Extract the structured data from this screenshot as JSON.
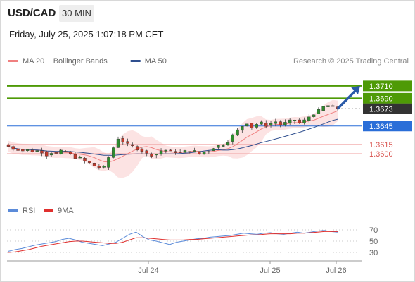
{
  "header": {
    "symbol": "USD/CAD",
    "timeframe": "30 MIN",
    "timestamp": "Friday, July 25, 2025 1:07:18 PM CET"
  },
  "legend": {
    "items": [
      {
        "label": "MA 20 + Bollinger Bands",
        "color": "#f08080"
      },
      {
        "label": "MA 50",
        "color": "#2f4f8f"
      }
    ],
    "credit": "Research © 2025 Trading Central"
  },
  "chart_data": [
    {
      "type": "candlestick",
      "title": "",
      "ylim": [
        1.3535,
        1.3735
      ],
      "grid": false,
      "legend_position": "top-left",
      "x_ticks": [
        "Jul 24",
        "Jul 25",
        "Jul 26"
      ],
      "close_path": [
        1.3612,
        1.3608,
        1.3607,
        1.3605,
        1.3606,
        1.3604,
        1.3605,
        1.3603,
        1.3598,
        1.3602,
        1.36,
        1.3604,
        1.3603,
        1.3599,
        1.3594,
        1.3593,
        1.3588,
        1.3585,
        1.358,
        1.3578,
        1.3578,
        1.3594,
        1.361,
        1.3625,
        1.362,
        1.3615,
        1.3612,
        1.3608,
        1.3605,
        1.36,
        1.3598,
        1.36,
        1.3605,
        1.3606,
        1.3604,
        1.3603,
        1.3602,
        1.3604,
        1.3605,
        1.3604,
        1.36,
        1.3603,
        1.3605,
        1.361,
        1.3613,
        1.3615,
        1.362,
        1.363,
        1.3638,
        1.3645,
        1.365,
        1.3643,
        1.3648,
        1.365,
        1.3646,
        1.3649,
        1.3652,
        1.3647,
        1.365,
        1.3653,
        1.3655,
        1.365,
        1.3654,
        1.366,
        1.3665,
        1.367,
        1.3676,
        1.3678,
        1.3676,
        1.3674
      ],
      "lines": [
        {
          "value": 1.371,
          "label": "1.3710",
          "kind": "resistance",
          "color": "#4e9a06"
        },
        {
          "value": 1.369,
          "label": "1.3690",
          "kind": "resistance",
          "color": "#4e9a06"
        },
        {
          "value": 1.3673,
          "label": "1.3673",
          "kind": "last",
          "color": "#333333"
        },
        {
          "value": 1.3645,
          "label": "1.3645",
          "kind": "pivot",
          "color": "#2a6ed8"
        },
        {
          "value": 1.3615,
          "label": "1.3615",
          "kind": "support",
          "color": "#d9534f"
        },
        {
          "value": 1.36,
          "label": "1.3600",
          "kind": "support",
          "color": "#d9534f"
        }
      ],
      "projection": {
        "from": 1.3673,
        "to": 1.371
      }
    },
    {
      "type": "line",
      "title": "",
      "legend": [
        {
          "label": "RSI",
          "color": "#5b8bd9"
        },
        {
          "label": "9MA",
          "color": "#e0302e"
        }
      ],
      "ylim": [
        20,
        80
      ],
      "y_ticks": [
        70,
        50,
        30
      ],
      "series": [
        {
          "name": "RSI",
          "values": [
            32,
            35,
            37,
            40,
            43,
            45,
            47,
            49,
            53,
            55,
            52,
            48,
            46,
            44,
            42,
            45,
            48,
            55,
            62,
            66,
            58,
            52,
            50,
            47,
            44,
            48,
            50,
            52,
            54,
            55,
            57,
            58,
            59,
            60,
            62,
            64,
            63,
            62,
            64,
            65,
            63,
            62,
            64,
            66,
            64,
            66,
            68,
            69,
            67,
            66
          ]
        },
        {
          "name": "9MA",
          "values": [
            30,
            31,
            33,
            35,
            38,
            41,
            43,
            45,
            47,
            49,
            50,
            50,
            49,
            48,
            47,
            46,
            46,
            48,
            52,
            56,
            56,
            55,
            54,
            53,
            52,
            52,
            52,
            53,
            53,
            54,
            55,
            56,
            57,
            58,
            59,
            60,
            61,
            61,
            62,
            63,
            63,
            63,
            63,
            64,
            64,
            65,
            66,
            67,
            67,
            67
          ]
        }
      ]
    }
  ]
}
